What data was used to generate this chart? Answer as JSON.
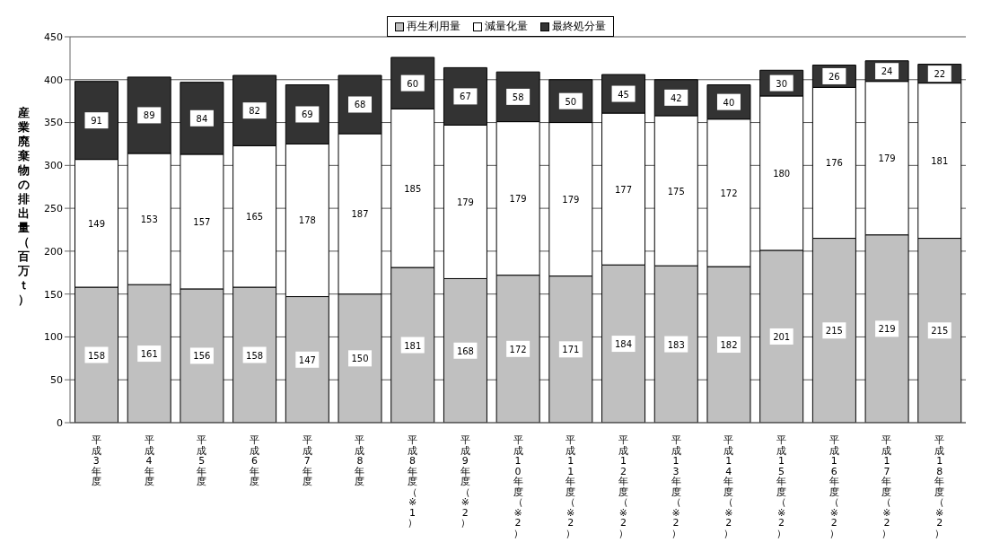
{
  "chart_data": {
    "type": "bar",
    "stacked": true,
    "ylabel": "産業廃棄物の排出量（百万ｔ）",
    "categories": [
      "平成3年度",
      "平成4年度",
      "平成5年度",
      "平成6年度",
      "平成7年度",
      "平成8年度",
      "平成8年度（※1）",
      "平成9年度（※2）",
      "平成10年度（※2）",
      "平成11年度（※2）",
      "平成12年度（※2）",
      "平成13年度（※2）",
      "平成14年度（※2）",
      "平成15年度（※2）",
      "平成16年度（※2）",
      "平成17年度（※2）",
      "平成18年度（※2）"
    ],
    "series": [
      {
        "name": "再生利用量",
        "color": "#c0c0c0",
        "values": [
          158,
          161,
          156,
          158,
          147,
          150,
          181,
          168,
          172,
          171,
          184,
          183,
          182,
          201,
          215,
          219,
          215
        ]
      },
      {
        "name": "減量化量",
        "color": "#ffffff",
        "values": [
          149,
          153,
          157,
          165,
          178,
          187,
          185,
          179,
          179,
          179,
          177,
          175,
          172,
          180,
          176,
          179,
          181
        ]
      },
      {
        "name": "最終処分量",
        "color": "#333333",
        "values": [
          91,
          89,
          84,
          82,
          69,
          68,
          60,
          67,
          58,
          50,
          45,
          42,
          40,
          30,
          26,
          24,
          22
        ]
      }
    ],
    "ylim": [
      0,
      450
    ],
    "yticks": [
      0,
      50,
      100,
      150,
      200,
      250,
      300,
      350,
      400,
      450
    ],
    "grid": "y",
    "legend": "top",
    "data_labels": true
  }
}
